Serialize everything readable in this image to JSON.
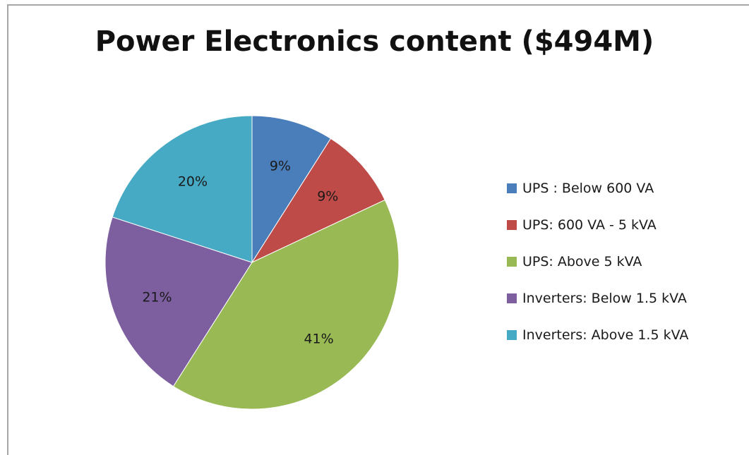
{
  "chart_data": {
    "type": "pie",
    "title": "Power Electronics content ($494M)",
    "legend_position": "right",
    "slices": [
      {
        "label": "UPS : Below 600 VA",
        "value": 9,
        "display": "9%",
        "color": "#4a7ebb"
      },
      {
        "label": "UPS: 600 VA - 5 kVA",
        "value": 9,
        "display": "9%",
        "color": "#be4b48"
      },
      {
        "label": "UPS: Above 5 kVA",
        "value": 41,
        "display": "41%",
        "color": "#98b954"
      },
      {
        "label": "Inverters: Below 1.5 kVA",
        "value": 21,
        "display": "21%",
        "color": "#7d5fa0"
      },
      {
        "label": "Inverters: Above 1.5 kVA",
        "value": 20,
        "display": "20%",
        "color": "#46aac4"
      }
    ]
  }
}
